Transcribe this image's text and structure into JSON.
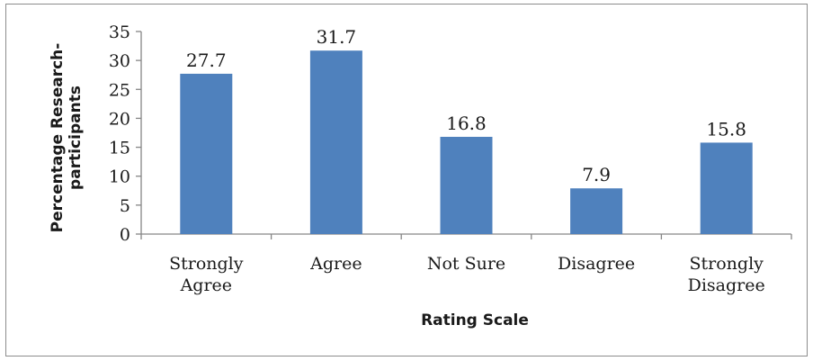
{
  "chart_data": {
    "type": "bar",
    "title": "",
    "categories": [
      "Strongly Agree",
      "Agree",
      "Not Sure",
      "Disagree",
      "Strongly Disagree"
    ],
    "category_label_lines": [
      [
        "Strongly",
        "Agree"
      ],
      [
        "Agree"
      ],
      [
        "Not Sure"
      ],
      [
        "Disagree"
      ],
      [
        "Strongly",
        "Disagree"
      ]
    ],
    "values": [
      27.7,
      31.7,
      16.8,
      7.9,
      15.8
    ],
    "data_labels": [
      "27.7",
      "31.7",
      "16.8",
      "7.9",
      "15.8"
    ],
    "xlabel": "Rating Scale",
    "ylabel_lines": [
      "Percentage Research-",
      "participants"
    ],
    "ylim": [
      0,
      35
    ],
    "yticks": [
      "0",
      "5",
      "10",
      "15",
      "20",
      "25",
      "30",
      "35"
    ],
    "grid": false,
    "legend": "none",
    "bar_color": "#4f81bd",
    "axis_color": "#868686"
  }
}
